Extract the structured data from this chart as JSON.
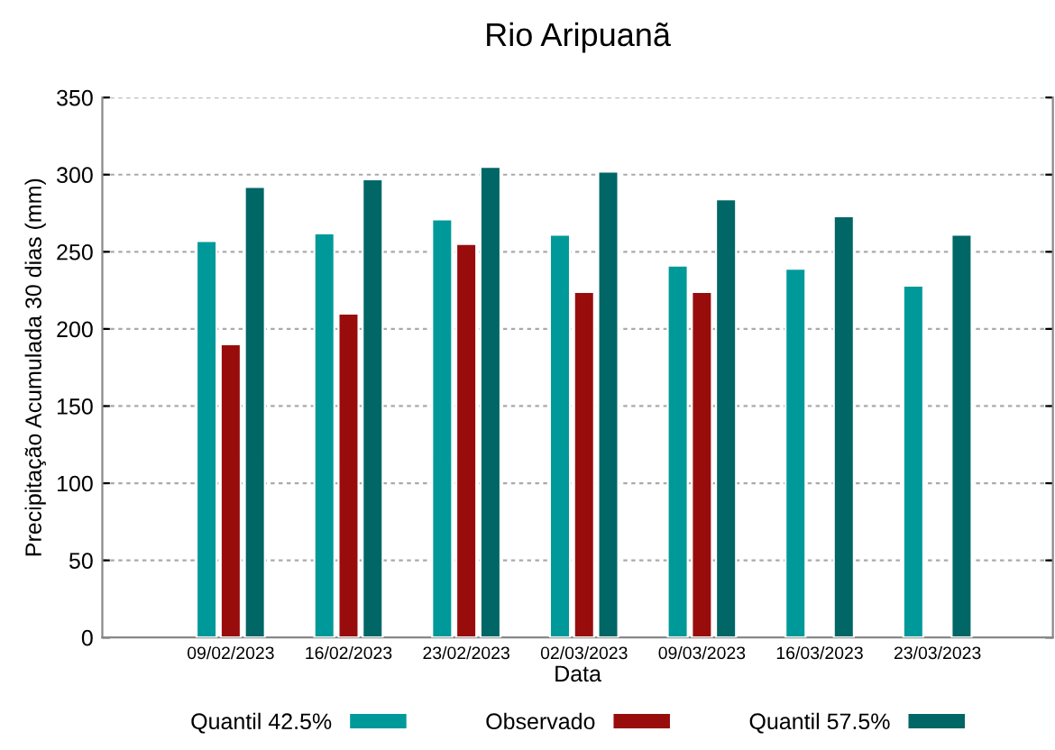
{
  "chart_data": {
    "type": "bar",
    "title": "Rio Aripuanã",
    "xlabel": "Data",
    "ylabel": "Precipitação Acumulada 30 dias (mm)",
    "categories": [
      "09/02/2023",
      "16/02/2023",
      "23/02/2023",
      "02/03/2023",
      "09/03/2023",
      "16/03/2023",
      "23/03/2023"
    ],
    "series": [
      {
        "name": "Quantil 42.5%",
        "color": "#009999",
        "values": [
          257,
          262,
          271,
          261,
          241,
          239,
          228
        ]
      },
      {
        "name": "Observado",
        "color": "#990c0c",
        "values": [
          190,
          210,
          255,
          224,
          224,
          null,
          null
        ]
      },
      {
        "name": "Quantil 57.5%",
        "color": "#006666",
        "values": [
          292,
          297,
          305,
          302,
          284,
          273,
          261
        ]
      }
    ],
    "ylim": [
      0,
      350
    ],
    "yticks": [
      0,
      50,
      100,
      150,
      200,
      250,
      300,
      350
    ],
    "grid": "y",
    "legend": "bottom"
  }
}
